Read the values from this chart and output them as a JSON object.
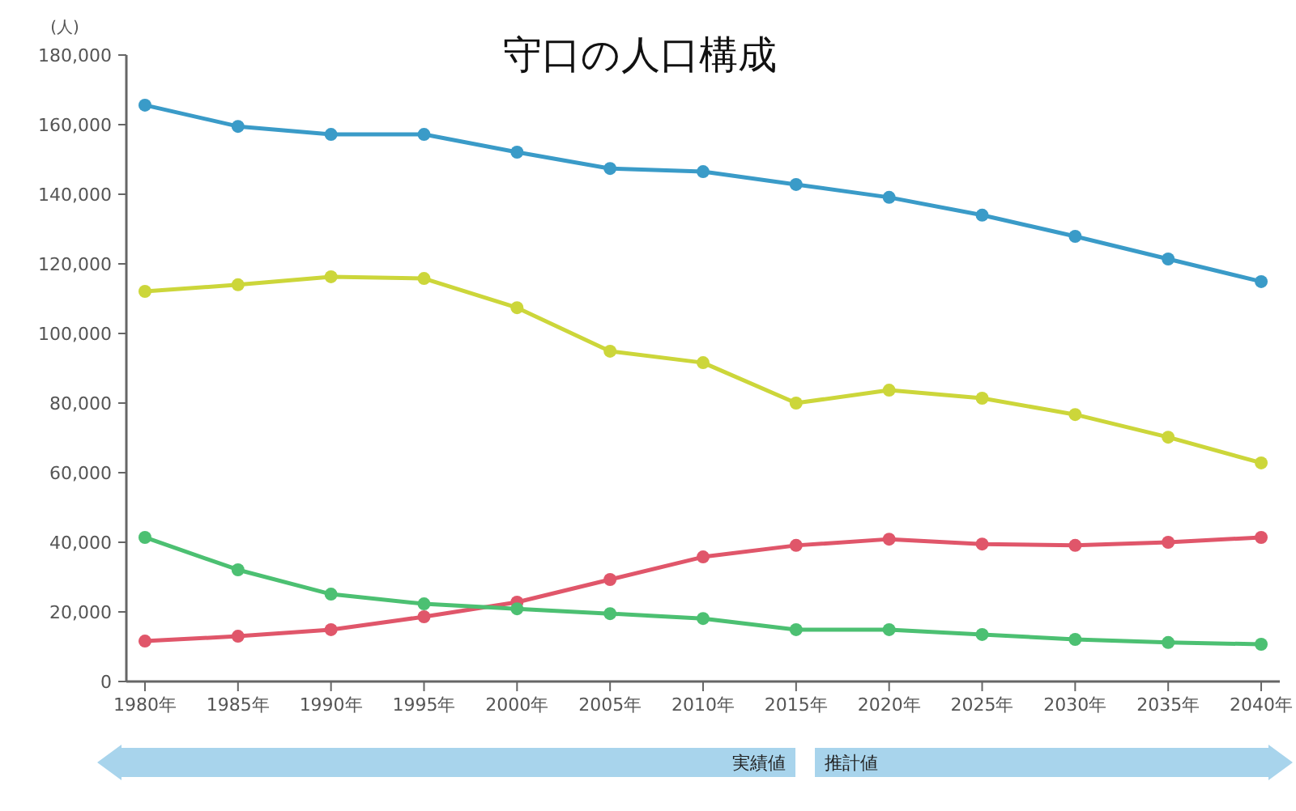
{
  "chart_data": {
    "type": "line",
    "title": "守口の人口構成",
    "ylabel": "(人)",
    "categories": [
      "1980年",
      "1985年",
      "1990年",
      "1995年",
      "2000年",
      "2005年",
      "2010年",
      "2015年",
      "2020年",
      "2025年",
      "2030年",
      "2035年",
      "2040年"
    ],
    "series": [
      {
        "color": "#3a9bc8",
        "values": [
          165600,
          159500,
          157200,
          157200,
          152100,
          147400,
          146500,
          142800,
          139100,
          134000,
          127900,
          121400,
          114900
        ]
      },
      {
        "color": "#ccd63a",
        "values": [
          112100,
          114000,
          116300,
          115800,
          107400,
          94900,
          91600,
          80000,
          83700,
          81400,
          76700,
          70200,
          62800
        ]
      },
      {
        "color": "#e0566a",
        "values": [
          11600,
          13000,
          14900,
          18600,
          22800,
          29300,
          35800,
          39100,
          40900,
          39500,
          39100,
          40000,
          41400
        ]
      },
      {
        "color": "#4cc072",
        "values": [
          41400,
          32100,
          25100,
          22300,
          20900,
          19500,
          18100,
          14900,
          14900,
          13500,
          12100,
          11200,
          10700
        ]
      }
    ],
    "ylim": [
      0,
      180000
    ],
    "yticks": [
      0,
      {
        "value": 20000,
        "label": "20,000"
      },
      {
        "value": 40000,
        "label": "40,000"
      },
      {
        "value": 60000,
        "label": "60,000"
      },
      {
        "value": 80000,
        "label": "80,000"
      },
      {
        "value": 100000,
        "label": "100,000"
      },
      {
        "value": 120000,
        "label": "120,000"
      },
      {
        "value": 140000,
        "label": "140,000"
      },
      {
        "value": 160000,
        "label": "160,000"
      },
      {
        "value": 180000,
        "label": "180,000"
      }
    ],
    "marker": "circle",
    "grid": false,
    "annotations": [
      "実績値",
      "推計値"
    ]
  }
}
